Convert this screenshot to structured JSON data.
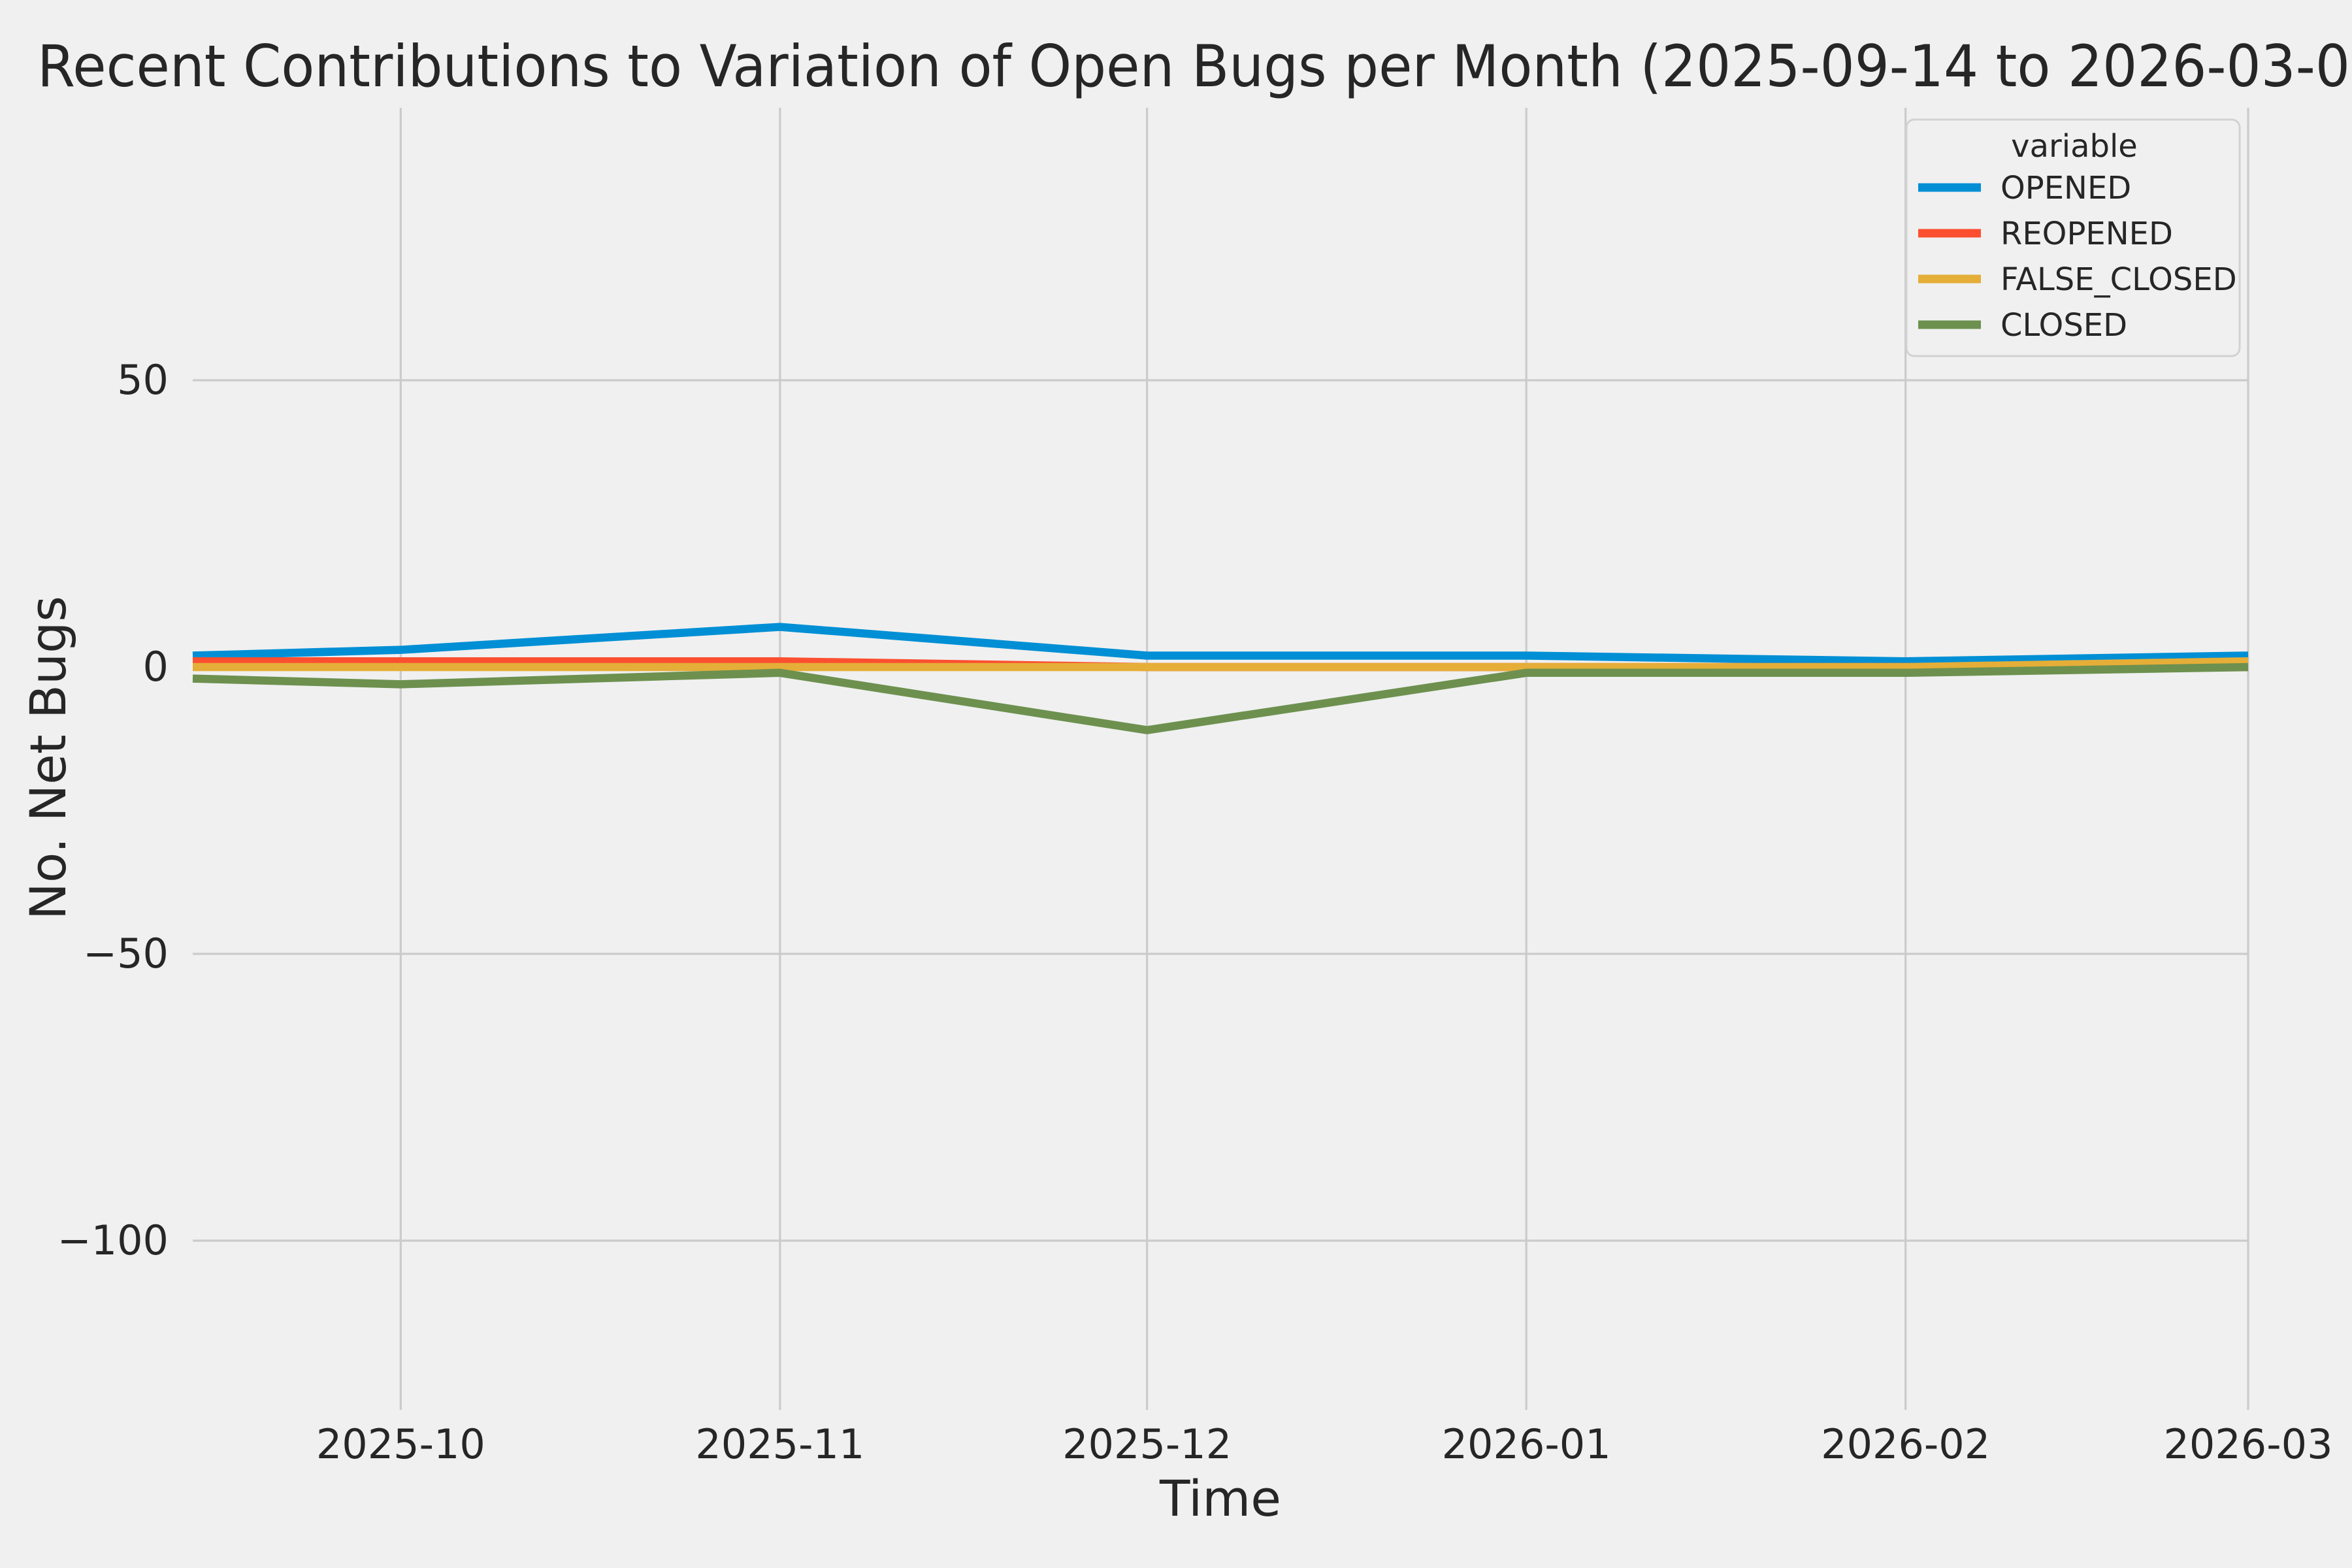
{
  "figure": {
    "background_color": "#f0f0f0",
    "gridline_color": "#cbcbcb",
    "text_color": "#262626"
  },
  "chart_data": {
    "type": "line",
    "title": "Recent Contributions to Variation of Open Bugs per Month (2025-09-14 to 2026-03-0",
    "xlabel": "Time",
    "ylabel": "No. Net Bugs",
    "x": [
      "2025-09-14",
      "2025-10-01",
      "2025-11-01",
      "2025-12-01",
      "2026-01-01",
      "2026-02-01",
      "2026-03-01"
    ],
    "x_tick_dates": [
      "2025-10-01",
      "2025-11-01",
      "2025-12-01",
      "2026-01-01",
      "2026-02-01",
      "2026-03-01"
    ],
    "x_tick_labels": [
      "2025-10",
      "2025-11",
      "2025-12",
      "2026-01",
      "2026-02",
      "2026-03"
    ],
    "y_ticks": [
      {
        "label": "50",
        "value": 50
      },
      {
        "label": "0",
        "value": 0
      },
      {
        "label": "−50",
        "value": -50
      },
      {
        "label": "−100",
        "value": -100
      }
    ],
    "ylim": [
      -129.5,
      97.5
    ],
    "grid": true,
    "series": [
      {
        "name": "OPENED",
        "color": "#008fd5",
        "values": [
          2,
          3,
          7,
          2,
          2,
          1,
          2
        ]
      },
      {
        "name": "REOPENED",
        "color": "#fc4f30",
        "values": [
          1,
          1,
          1,
          0,
          0,
          0,
          0
        ]
      },
      {
        "name": "FALSE_CLOSED",
        "color": "#e5ae38",
        "values": [
          0,
          0,
          0,
          0,
          0,
          0,
          1
        ]
      },
      {
        "name": "CLOSED",
        "color": "#6d904f",
        "values": [
          -2,
          -3,
          -1,
          -11,
          -1,
          -1,
          0
        ]
      }
    ],
    "legend": {
      "title": "variable",
      "position": "upper right",
      "entries": [
        "OPENED",
        "REOPENED",
        "FALSE_CLOSED",
        "CLOSED"
      ]
    }
  }
}
